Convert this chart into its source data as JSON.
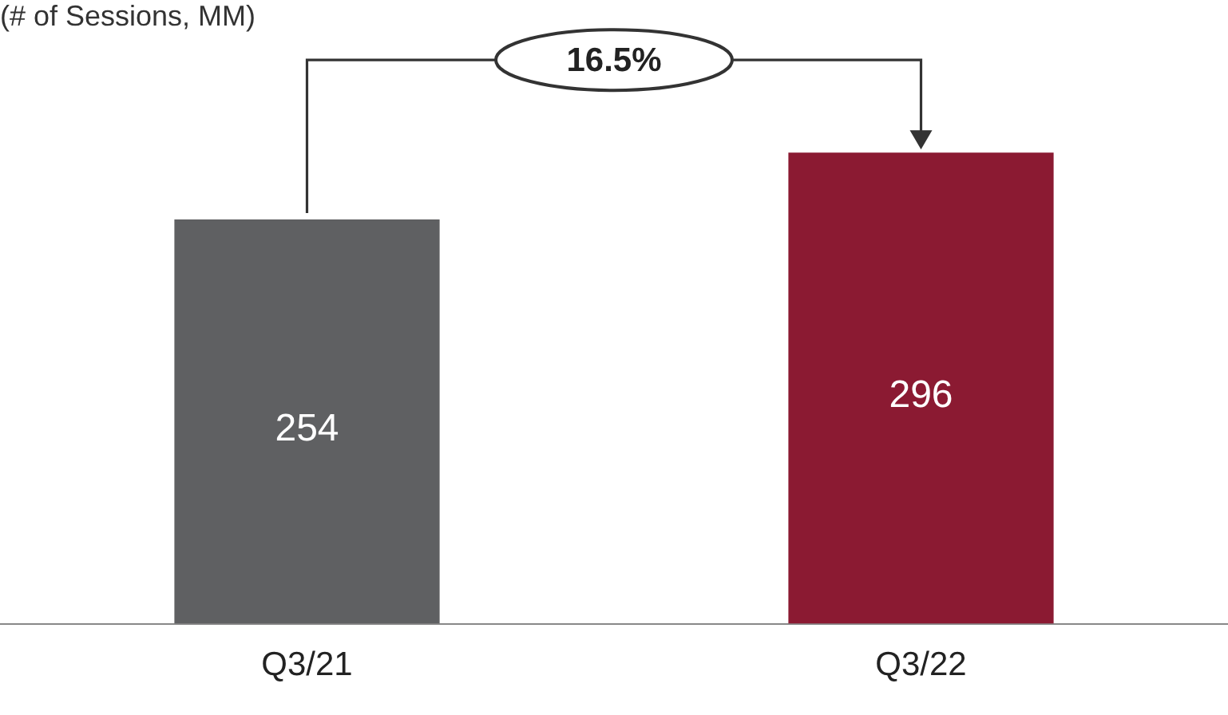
{
  "chart_data": {
    "type": "bar",
    "title": "(# of Sessions, MM)",
    "categories": [
      "Q3/21",
      "Q3/22"
    ],
    "values": [
      254,
      296
    ],
    "colors": [
      "#5f6062",
      "#8b1a32"
    ],
    "data_labels": true,
    "tick_labels": "x",
    "annotations": [
      "16.5%"
    ]
  }
}
